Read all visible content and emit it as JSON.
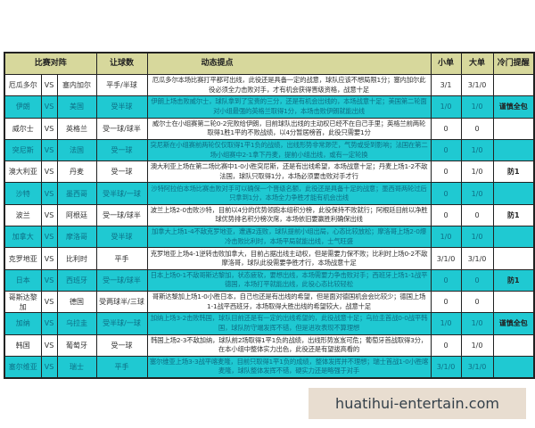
{
  "header": {
    "match": "比赛对阵",
    "handicap": "让球数",
    "notes": "动态提点",
    "small": "小单",
    "big": "大单",
    "upset": "冷门提醒"
  },
  "colors": {
    "header": "#d7d89c",
    "cyan_row": "#1fc9d2",
    "white_row": "#ffffff"
  },
  "rows": [
    {
      "home": "厄瓜多尔",
      "vs": "VS",
      "away": "塞内加尔",
      "handicap": "平手/半球",
      "notes": "厄瓜多尔本场比赛打平都可出线，此役还是具备一定的战意，球队应该不想局限1分；塞内加尔此役必须全力击败对手，才有机会获得晋级资格，战意十足",
      "small": "3/1",
      "big": "3/1/0",
      "upset": "",
      "style": "white"
    },
    {
      "home": "伊朗",
      "vs": "VS",
      "away": "美国",
      "handicap": "受半球",
      "notes": "伊朗上场击败威尔士，球队拿到了宝贵的三分，还是有机会出线的，本场战意十足；美国第二轮面对小组最强的英格兰取得1分，本场击败伊朗就能出线",
      "small": "1/0",
      "big": "1/0",
      "upset": "谨慎全包",
      "style": "cyan"
    },
    {
      "home": "威尔士",
      "vs": "VS",
      "away": "英格兰",
      "handicap": "受一球/球半",
      "notes": "威尔士在小组赛第二轮0-2完败给伊朗，目前球队出线的主动权已经不在自己手里；英格兰前两轮取得1胜1平的不败战绩，以4分暂居榜首，此役只需要1分",
      "small": "0",
      "big": "0",
      "upset": "",
      "style": "white"
    },
    {
      "home": "突尼斯",
      "vs": "VS",
      "away": "法国",
      "handicap": "受一球",
      "notes": "突尼斯在小组赛前两轮仅仅取得1平1负的战绩，出线形势非常渺茫，气势或受到影响；法国在第二场小组赛中2-1拿下丹麦，提前小组出线，或有一定轮换",
      "small": "0",
      "big": "1/0",
      "upset": "",
      "style": "cyan"
    },
    {
      "home": "澳大利亚",
      "vs": "VS",
      "away": "丹麦",
      "handicap": "受一球",
      "notes": "澳大利亚上场在第二场比赛中1-0小胜突尼斯，还是有出线希望，本场战意十足；丹麦上场1-2不敌法国，球队只取得1分，本场必须要击败对手才行",
      "small": "0",
      "big": "1/0",
      "upset": "防1",
      "style": "white"
    },
    {
      "home": "沙特",
      "vs": "VS",
      "away": "墨西哥",
      "handicap": "受半球/一球",
      "notes": "沙特阿拉伯本场比赛击败对手可以确保一个晋级名额，此役还是具备十足的战意；墨西哥两轮过后只拿到1分，本场全力争胜才能有机会出线",
      "small": "0",
      "big": "1/0",
      "upset": "",
      "style": "cyan"
    },
    {
      "home": "波兰",
      "vs": "VS",
      "away": "阿根廷",
      "handicap": "受一球/球半",
      "notes": "波兰上场2-0击败沙特，目前以4分的优势领跑本组积分榜，此役保持不败就行；阿根廷目前以净胜球优势排名积分榜次席，本场依旧要赢胜利确保出线",
      "small": "0",
      "big": "0",
      "upset": "防1",
      "style": "white"
    },
    {
      "home": "加拿大",
      "vs": "VS",
      "away": "摩洛哥",
      "handicap": "受半球",
      "notes": "加拿大上场1-4不敌克罗地亚，遭遇2连败，球队提前小组出局，心态比较放松；摩洛哥上场2-0爆冷击败比利时，本场平局就能出线，士气旺盛",
      "small": "1/0",
      "big": "1/0",
      "upset": "",
      "style": "cyan"
    },
    {
      "home": "克罗地亚",
      "vs": "VS",
      "away": "比利时",
      "handicap": "平手",
      "notes": "克罗地亚上场4-1逆转击败加拿大，目前占据出线主动权，但是需要力保不败；比利时上场0-2不敌摩洛哥，球队此役需要争胜才行，本场战意十足",
      "small": "3/1/0",
      "big": "3/1/0",
      "upset": "",
      "style": "white"
    },
    {
      "home": "日本",
      "vs": "VS",
      "away": "西班牙",
      "handicap": "受一球/球半",
      "notes": "日本上场0-1不敌哥斯达黎加，状态疲软，要想出线，本场需要力争击败对手；西班牙上场1-1战平德国，本场打平就能出线，此役心态比较轻松",
      "small": "0",
      "big": "0",
      "upset": "防1",
      "style": "cyan"
    },
    {
      "home": "哥斯达黎加",
      "vs": "VS",
      "away": "德国",
      "handicap": "受两球半/三球",
      "notes": "哥斯达黎加上场1-0小胜日本，自己也还是有出线的希望，但是面对德国机会会比较少；德国上场1-1战平西班牙，本场取得大胜出线的希望较大，战意十足",
      "small": "0",
      "big": "0",
      "upset": "",
      "style": "white"
    },
    {
      "home": "加纳",
      "vs": "VS",
      "away": "乌拉圭",
      "handicap": "受半球/一球",
      "notes": "加纳上场3-2击败韩国，球队目前还是有一定的出线希望的，此役战意十足；乌拉圭首战0-0战平韩国，球队防守端发挥不错，但是进攻表现不算理想",
      "small": "1/0",
      "big": "1/0",
      "upset": "谨慎全包",
      "style": "cyan"
    },
    {
      "home": "韩国",
      "vs": "VS",
      "away": "葡萄牙",
      "handicap": "受一球",
      "notes": "韩国上场2-3不敌加纳，球队前2场取得1平1负的战绩，出线形势岌岌可危；葡萄牙首战取得3分，在本小组中整体实力出色，此役还是有望拔高看的",
      "small": "0",
      "big": "1/0",
      "upset": "",
      "style": "white"
    },
    {
      "home": "塞尔维亚",
      "vs": "VS",
      "away": "瑞士",
      "handicap": "平手",
      "notes": "塞尔维亚上场3-3战平喀麦隆，目前只取得1平1负的成绩，整体发挥并不理想；瑞士首战1-0小胜喀麦隆，球队整体发挥不错，硬实力还是略强于对手",
      "small": "3/1/0",
      "big": "3/1/0",
      "upset": "",
      "style": "cyan"
    }
  ],
  "watermark": "huatihui-entertain.com"
}
